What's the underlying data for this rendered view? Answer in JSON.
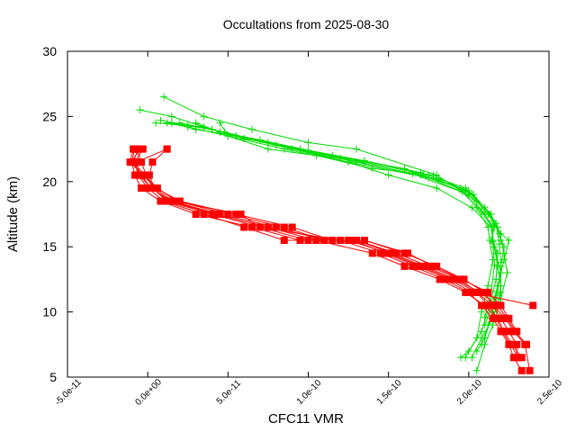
{
  "chart_data": {
    "type": "line",
    "title": "Occultations from 2025-08-30",
    "xlabel": "CFC11 VMR",
    "ylabel": "Altitude (km)",
    "xlim": [
      -5e-11,
      2.5e-10
    ],
    "ylim": [
      5,
      30
    ],
    "x_ticks": [
      -5e-11,
      0,
      5e-11,
      1e-10,
      1.5e-10,
      2e-10,
      2.5e-10
    ],
    "x_tick_labels": [
      "-5.0e-11",
      "0.0e+00",
      "5.0e-11",
      "1.0e-10",
      "1.5e-10",
      "2.0e-10",
      "2.5e-10"
    ],
    "y_ticks": [
      5,
      10,
      15,
      20,
      25,
      30
    ],
    "y_tick_labels": [
      "5",
      "10",
      "15",
      "20",
      "25",
      "30"
    ],
    "grid": false,
    "legend": "none",
    "series_style": [
      {
        "color": "#ff0000",
        "marker": "square"
      },
      {
        "color": "#00dd00",
        "marker": "plus"
      }
    ],
    "series": [
      {
        "group": 0,
        "x": [
          1.2e-11,
          -7e-12,
          -5e-12,
          2e-12,
          1.5e-11,
          4.5e-11,
          8e-11,
          1.1e-10,
          1.3e-10,
          1.55e-10,
          1.75e-10,
          1.95e-10,
          2.05e-10,
          2.15e-10,
          2.2e-10,
          2.25e-10,
          2.3e-10,
          2.3e-10
        ],
        "y": [
          22.5,
          21.5,
          20.5,
          19.5,
          18.5,
          17.5,
          16.5,
          15.5,
          15.5,
          14.5,
          13.5,
          12.5,
          11.5,
          10.5,
          9.5,
          8.5,
          7.5,
          6.5
        ]
      },
      {
        "group": 0,
        "x": [
          -5e-12,
          -1e-11,
          -8e-12,
          -4e-12,
          8e-12,
          3e-11,
          6.5e-11,
          9.5e-11,
          1.2e-10,
          1.45e-10,
          1.65e-10,
          1.85e-10,
          2e-10,
          2.08e-10,
          2.15e-10,
          2.2e-10,
          2.25e-10,
          2.28e-10,
          2.33e-10
        ],
        "y": [
          22.5,
          21.5,
          20.5,
          19.5,
          18.5,
          17.5,
          16.5,
          15.5,
          15.5,
          14.5,
          13.5,
          12.5,
          11.5,
          10.5,
          9.5,
          8.5,
          7.5,
          6.5,
          5.5
        ]
      },
      {
        "group": 0,
        "x": [
          -7e-12,
          -4e-12,
          -1e-12,
          3e-12,
          1.2e-11,
          4e-11,
          7e-11,
          1e-10,
          1.25e-10,
          1.5e-10,
          1.7e-10,
          1.9e-10,
          2.05e-10,
          2.12e-10,
          2.18e-10,
          2.22e-10,
          2.27e-10,
          2.33e-10
        ],
        "y": [
          22.5,
          21.5,
          20.5,
          19.5,
          18.5,
          17.5,
          16.5,
          15.5,
          15.5,
          14.5,
          13.5,
          12.5,
          11.5,
          10.5,
          9.5,
          8.5,
          7.5,
          6.5
        ]
      },
      {
        "group": 0,
        "x": [
          -9e-12,
          -1.1e-11,
          -3e-12,
          5e-12,
          2e-11,
          5.5e-11,
          9e-11,
          1.15e-10,
          1.35e-10,
          1.6e-10,
          1.8e-10,
          1.97e-10,
          2.1e-10,
          2.15e-10,
          2.23e-10,
          2.28e-10,
          2.35e-10,
          2.38e-10
        ],
        "y": [
          22.5,
          21.5,
          20.5,
          19.5,
          18.5,
          17.5,
          16.5,
          15.5,
          15.5,
          14.5,
          13.5,
          12.5,
          11.5,
          10.5,
          9.5,
          8.5,
          7.5,
          5.5
        ]
      },
      {
        "group": 0,
        "x": [
          -3e-12,
          -8e-12,
          -6e-12,
          0,
          1e-11,
          3.5e-11,
          6e-11,
          8.5e-11,
          1.05e-10,
          1.4e-10,
          1.6e-10,
          1.82e-10,
          1.98e-10,
          2.1e-10,
          2.17e-10,
          2.21e-10,
          2.26e-10,
          2.31e-10
        ],
        "y": [
          22.5,
          21.5,
          20.5,
          19.5,
          18.5,
          17.5,
          16.5,
          15.5,
          15.5,
          14.5,
          13.5,
          12.5,
          11.5,
          10.5,
          9.5,
          8.5,
          7.5,
          6.5
        ]
      },
      {
        "group": 0,
        "x": [
          -6e-12,
          -9e-12,
          -2e-12,
          6e-12,
          1.8e-11,
          5e-11,
          8.5e-11,
          1.1e-10,
          1.3e-10,
          1.52e-10,
          1.72e-10,
          1.92e-10,
          2.07e-10,
          2.18e-10,
          2.24e-10,
          2.29e-10,
          2.36e-10
        ],
        "y": [
          22.5,
          21.5,
          20.5,
          19.5,
          18.5,
          17.5,
          16.5,
          15.5,
          15.5,
          14.5,
          13.5,
          12.5,
          11.5,
          10.5,
          9.5,
          8.5,
          7.5
        ]
      },
      {
        "group": 0,
        "x": [
          -8e-12,
          -1e-11,
          -4e-12,
          2e-12,
          1.4e-11,
          4.2e-11,
          7.5e-11,
          1.05e-10,
          1.28e-10,
          1.48e-10,
          1.68e-10,
          1.88e-10,
          2.02e-10,
          2.4e-10
        ],
        "y": [
          22.5,
          21.5,
          20.5,
          19.5,
          18.5,
          17.5,
          16.5,
          15.5,
          15.5,
          14.5,
          13.5,
          12.5,
          11.5,
          10.5
        ]
      },
      {
        "group": 0,
        "x": [
          1.2e-11,
          3e-12,
          1e-12,
          4e-12,
          1.6e-11,
          5.8e-11,
          7e-11,
          1.2e-10,
          1.35e-10,
          1.62e-10,
          1.78e-10,
          1.96e-10,
          2.12e-10,
          2.2e-10,
          2.25e-10,
          2.3e-10
        ],
        "y": [
          22.5,
          21.5,
          20.5,
          19.5,
          18.5,
          17.5,
          16.5,
          15.5,
          15.5,
          14.5,
          13.5,
          12.5,
          11.5,
          10.5,
          9.5,
          8.5
        ]
      },
      {
        "group": 1,
        "x": [
          1.2e-11,
          2.5e-11,
          5e-11,
          8.5e-11,
          1.25e-10,
          1.75e-10,
          2e-10,
          2.1e-10,
          2.15e-10,
          2.15e-10,
          2.18e-10,
          2.17e-10,
          2.13e-10,
          2.08e-10,
          2e-10,
          1.95e-10
        ],
        "y": [
          24.5,
          24.2,
          23.5,
          22.5,
          21.5,
          20.3,
          19,
          17.5,
          16.5,
          15.5,
          14.5,
          12.5,
          10.5,
          8.5,
          7,
          6.5
        ]
      },
      {
        "group": 1,
        "x": [
          -5e-12,
          1.5e-11,
          4e-11,
          7.5e-11,
          1.15e-10,
          1.6e-10,
          1.95e-10,
          2.05e-10,
          2.12e-10,
          2.13e-10,
          2.15e-10,
          2.12e-10,
          2.08e-10,
          2.05e-10,
          1.98e-10
        ],
        "y": [
          25.5,
          25,
          24,
          23,
          22,
          21,
          19.5,
          18,
          16.5,
          15.5,
          14,
          12,
          10,
          8,
          6.5
        ]
      },
      {
        "group": 1,
        "x": [
          1.5e-11,
          3e-11,
          5.5e-11,
          9e-11,
          1.3e-10,
          1.7e-10,
          2e-10,
          2.12e-10,
          2.18e-10,
          2.2e-10,
          2.22e-10,
          2.24e-10,
          2.2e-10,
          2.15e-10,
          2.1e-10,
          2.05e-10
        ],
        "y": [
          24.5,
          24,
          23.5,
          22.5,
          21.5,
          20.5,
          19.3,
          17.5,
          16.5,
          15.5,
          14.5,
          13,
          11,
          9,
          7.5,
          5.5
        ]
      },
      {
        "group": 1,
        "x": [
          2e-11,
          4e-11,
          6e-11,
          9.5e-11,
          1.35e-10,
          1.75e-10,
          2.02e-10,
          2.14e-10,
          2.16e-10,
          2.14e-10,
          2.17e-10,
          2.2e-10,
          2.16e-10,
          2.1e-10
        ],
        "y": [
          24.5,
          24,
          23.3,
          22.5,
          21.5,
          20.5,
          19,
          17.5,
          16.5,
          15.5,
          14.5,
          13,
          11,
          9
        ]
      },
      {
        "group": 1,
        "x": [
          1e-11,
          3.5e-11,
          6.5e-11,
          1e-10,
          1.3e-10,
          1.8e-10,
          2.05e-10,
          2.15e-10,
          2.2e-10,
          2.25e-10,
          2.22e-10,
          2.18e-10,
          2.15e-10,
          2.1e-10,
          2.05e-10
        ],
        "y": [
          26.5,
          25,
          24,
          23,
          22.5,
          20.5,
          18.5,
          17,
          16,
          15.5,
          14,
          12,
          10,
          8,
          7
        ]
      },
      {
        "group": 1,
        "x": [
          5e-12,
          3.5e-11,
          5.5e-11,
          9e-11,
          1.25e-10,
          1.5e-10,
          1.8e-10,
          2.02e-10,
          2.14e-10,
          2.16e-10,
          2.18e-10,
          2.2e-10,
          2.18e-10,
          2.12e-10
        ],
        "y": [
          24.5,
          24.2,
          23.5,
          22.5,
          21.5,
          20.5,
          19.5,
          18,
          16.5,
          15,
          13.5,
          12,
          10.5,
          9
        ]
      },
      {
        "group": 1,
        "x": [
          3e-11,
          4.5e-11,
          7e-11,
          1e-10,
          1.35e-10,
          1.7e-10,
          1.98e-10,
          2.1e-10,
          2.17e-10,
          2.19e-10,
          2.2e-10,
          2.2e-10,
          2.15e-10,
          2.08e-10,
          2.02e-10
        ],
        "y": [
          24.5,
          23.8,
          23.2,
          22.4,
          21.6,
          20.7,
          19.5,
          18,
          16.8,
          15.2,
          13.8,
          11.5,
          9.5,
          8,
          6.5
        ]
      },
      {
        "group": 1,
        "x": [
          4.5e-11,
          5e-11,
          7.5e-11,
          1.05e-10,
          1.4e-10,
          1.78e-10,
          2.03e-10,
          2.13e-10,
          2.19e-10,
          2.22e-10,
          2.2e-10,
          2.18e-10,
          2.14e-10,
          2.08e-10
        ],
        "y": [
          24.5,
          23.5,
          22.5,
          22,
          21,
          20.5,
          19,
          17.5,
          16,
          15,
          13.5,
          11.5,
          9.5,
          7.5
        ]
      },
      {
        "group": 1,
        "x": [
          8e-12,
          2.5e-11,
          4.8e-11,
          8e-11,
          1.2e-10,
          1.65e-10,
          1.96e-10,
          2.08e-10,
          2.14e-10,
          2.15e-10,
          2.16e-10,
          2.14e-10,
          2.1e-10
        ],
        "y": [
          24.7,
          24.3,
          23.8,
          22.8,
          21.8,
          20.6,
          19.2,
          17.7,
          16.6,
          15.4,
          13.6,
          11.6,
          9.6
        ]
      }
    ]
  }
}
